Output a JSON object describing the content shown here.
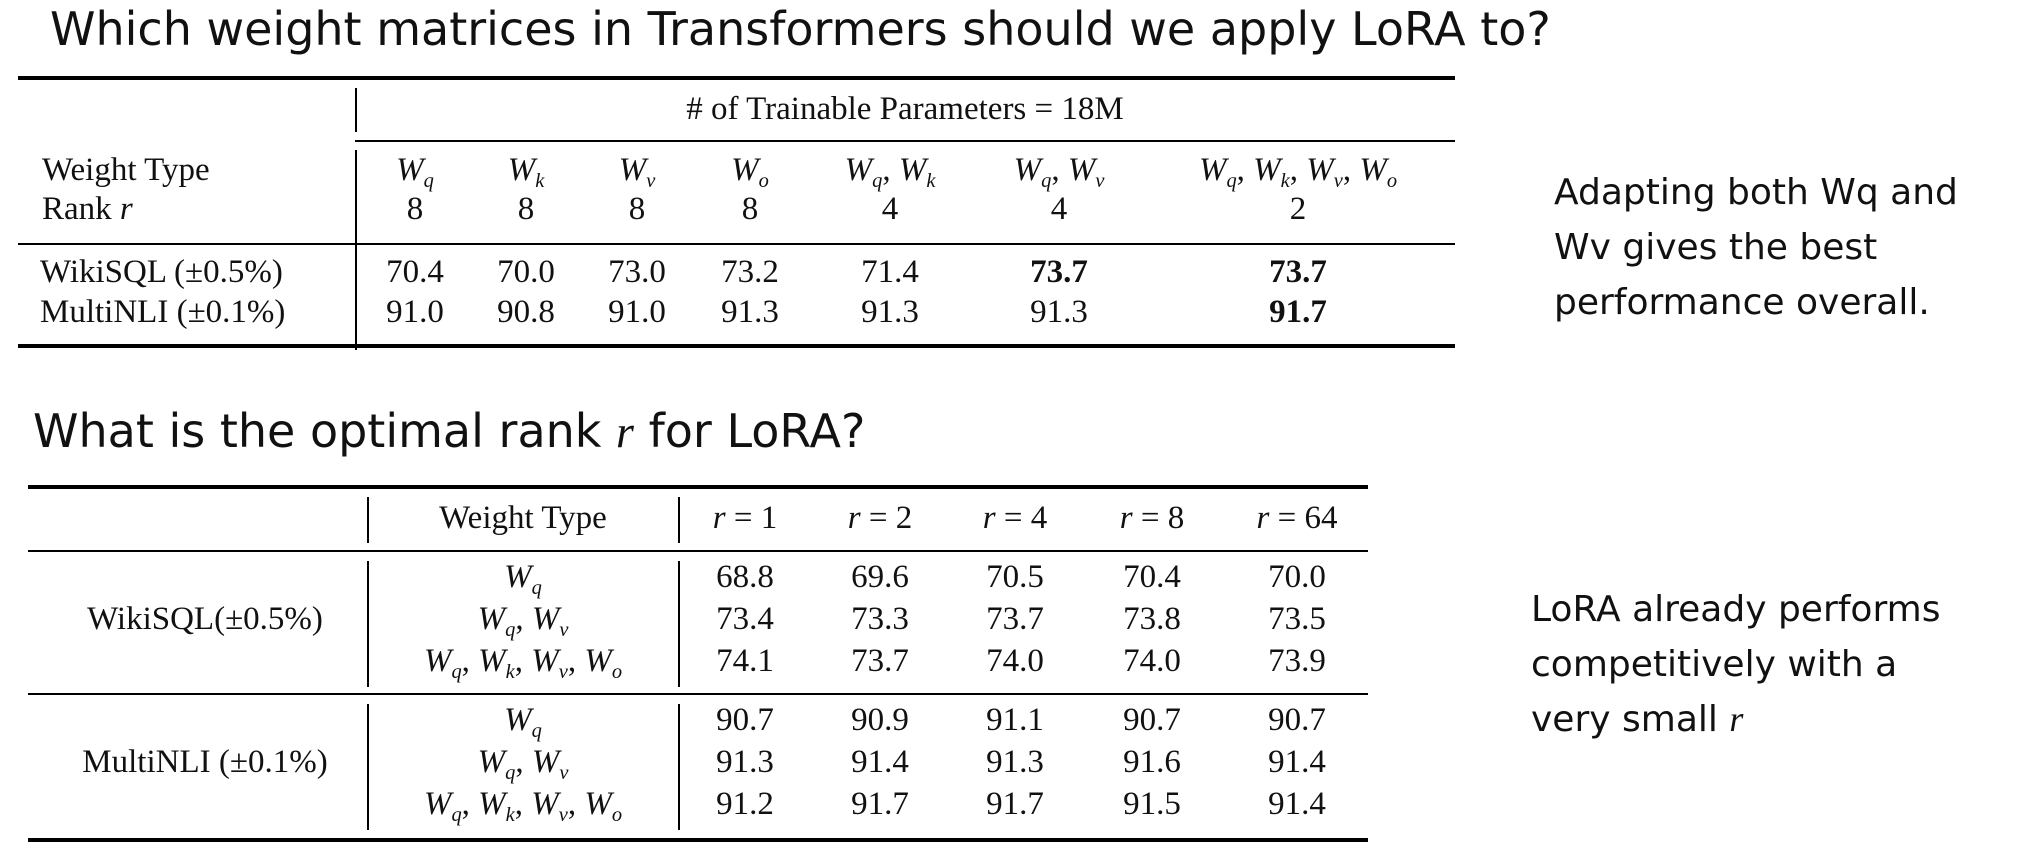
{
  "title1": "Which weight matrices in Transformers should we apply LoRA to?",
  "title2_prefix": "What is the optimal rank ",
  "title2_var": "r",
  "title2_suffix": " for LoRA?",
  "note1": [
    "Adapting both Wq and",
    "Wv gives the best",
    "performance overall."
  ],
  "note2_lines": [
    "LoRA already performs",
    "competitively with a",
    "very small "
  ],
  "note2_var": "r",
  "table1": {
    "header": "# of Trainable Parameters = 18M",
    "weight_type_label": "Weight Type",
    "rank_label": "Rank",
    "rank_var": "r",
    "columns": [
      {
        "weights": [
          {
            "base": "W",
            "sub": "q"
          }
        ],
        "rank": "8"
      },
      {
        "weights": [
          {
            "base": "W",
            "sub": "k"
          }
        ],
        "rank": "8"
      },
      {
        "weights": [
          {
            "base": "W",
            "sub": "v"
          }
        ],
        "rank": "8"
      },
      {
        "weights": [
          {
            "base": "W",
            "sub": "o"
          }
        ],
        "rank": "8"
      },
      {
        "weights": [
          {
            "base": "W",
            "sub": "q"
          },
          {
            "base": "W",
            "sub": "k"
          }
        ],
        "rank": "4"
      },
      {
        "weights": [
          {
            "base": "W",
            "sub": "q"
          },
          {
            "base": "W",
            "sub": "v"
          }
        ],
        "rank": "4"
      },
      {
        "weights": [
          {
            "base": "W",
            "sub": "q"
          },
          {
            "base": "W",
            "sub": "k"
          },
          {
            "base": "W",
            "sub": "v"
          },
          {
            "base": "W",
            "sub": "o"
          }
        ],
        "rank": "2"
      }
    ],
    "rows": [
      {
        "label": "WikiSQL (±0.5%)",
        "values": [
          "70.4",
          "70.0",
          "73.0",
          "73.2",
          "71.4",
          "73.7",
          "73.7"
        ],
        "bold": [
          false,
          false,
          false,
          false,
          false,
          true,
          true
        ]
      },
      {
        "label": "MultiNLI (±0.1%)",
        "values": [
          "91.0",
          "90.8",
          "91.0",
          "91.3",
          "91.3",
          "91.3",
          "91.7"
        ],
        "bold": [
          false,
          false,
          false,
          false,
          false,
          false,
          true
        ]
      }
    ]
  },
  "table2": {
    "weight_type_label": "Weight Type",
    "rank_var": "r",
    "ranks": [
      "1",
      "2",
      "4",
      "8",
      "64"
    ],
    "groups": [
      {
        "label": "WikiSQL(±0.5%)",
        "rows": [
          {
            "weights": [
              {
                "base": "W",
                "sub": "q"
              }
            ],
            "values": [
              "68.8",
              "69.6",
              "70.5",
              "70.4",
              "70.0"
            ]
          },
          {
            "weights": [
              {
                "base": "W",
                "sub": "q"
              },
              {
                "base": "W",
                "sub": "v"
              }
            ],
            "values": [
              "73.4",
              "73.3",
              "73.7",
              "73.8",
              "73.5"
            ]
          },
          {
            "weights": [
              {
                "base": "W",
                "sub": "q"
              },
              {
                "base": "W",
                "sub": "k"
              },
              {
                "base": "W",
                "sub": "v"
              },
              {
                "base": "W",
                "sub": "o"
              }
            ],
            "values": [
              "74.1",
              "73.7",
              "74.0",
              "74.0",
              "73.9"
            ]
          }
        ]
      },
      {
        "label": "MultiNLI (±0.1%)",
        "rows": [
          {
            "weights": [
              {
                "base": "W",
                "sub": "q"
              }
            ],
            "values": [
              "90.7",
              "90.9",
              "91.1",
              "90.7",
              "90.7"
            ]
          },
          {
            "weights": [
              {
                "base": "W",
                "sub": "q"
              },
              {
                "base": "W",
                "sub": "v"
              }
            ],
            "values": [
              "91.3",
              "91.4",
              "91.3",
              "91.6",
              "91.4"
            ]
          },
          {
            "weights": [
              {
                "base": "W",
                "sub": "q"
              },
              {
                "base": "W",
                "sub": "k"
              },
              {
                "base": "W",
                "sub": "v"
              },
              {
                "base": "W",
                "sub": "o"
              }
            ],
            "values": [
              "91.2",
              "91.7",
              "91.7",
              "91.5",
              "91.4"
            ]
          }
        ]
      }
    ]
  }
}
